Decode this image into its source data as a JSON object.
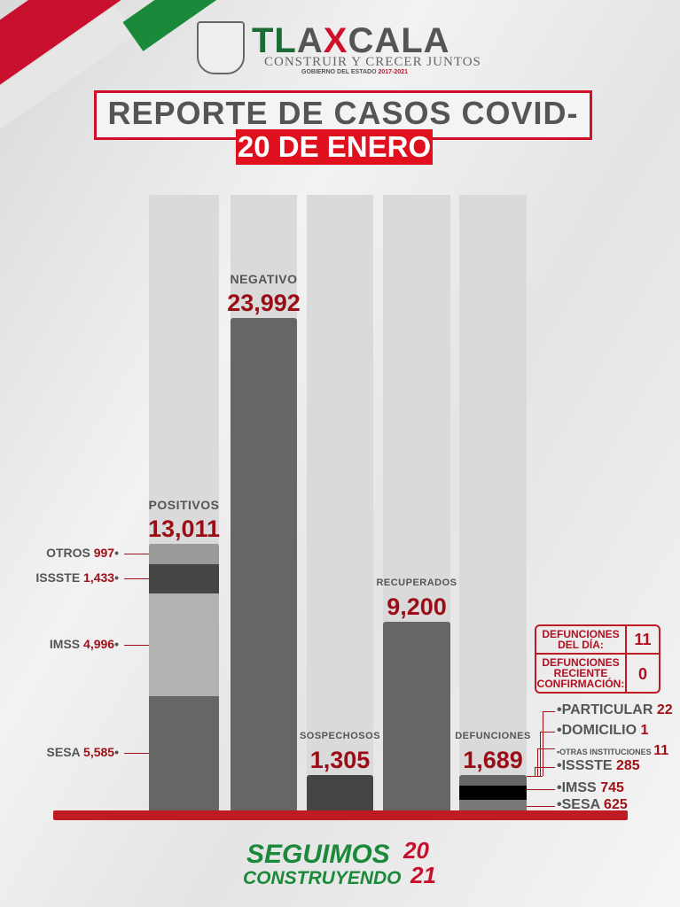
{
  "header": {
    "logo_text": "TLAXCALA",
    "slogan": "CONSTRUIR Y CRECER JUNTOS",
    "gobierno": "GOBIERNO DEL ESTADO",
    "periodo": "2017-2021",
    "title": "REPORTE DE CASOS COVID-19",
    "date": "20 DE ENERO"
  },
  "chart_data": {
    "type": "bar",
    "categories": [
      "POSITIVOS",
      "NEGATIVO",
      "SOSPECHOSOS",
      "RECUPERADOS",
      "DEFUNCIONES"
    ],
    "values": [
      13011,
      23992,
      1305,
      9200,
      1689
    ],
    "value_labels": [
      "13,011",
      "23,992",
      "1,305",
      "9,200",
      "1,689"
    ],
    "ylim": [
      0,
      30000
    ],
    "positivos_breakdown": [
      {
        "name": "OTROS",
        "value": 997,
        "label": "997",
        "color": "#9a9a9a"
      },
      {
        "name": "ISSSTE",
        "value": 1433,
        "label": "1,433",
        "color": "#454545"
      },
      {
        "name": "IMSS",
        "value": 4996,
        "label": "4,996",
        "color": "#b2b2b2"
      },
      {
        "name": "SESA",
        "value": 5585,
        "label": "5,585",
        "color": "#666666"
      }
    ],
    "defunciones_breakdown": [
      {
        "name": "PARTICULAR",
        "value": 22,
        "label": "22"
      },
      {
        "name": "DOMICILIO",
        "value": 1,
        "label": "1"
      },
      {
        "name": "OTRAS INSTITUCIONES",
        "value": 11,
        "label": "11"
      },
      {
        "name": "ISSSTE",
        "value": 285,
        "label": "285"
      },
      {
        "name": "IMSS",
        "value": 745,
        "label": "745"
      },
      {
        "name": "SESA",
        "value": 625,
        "label": "625"
      }
    ],
    "bar_colors": [
      "#666666",
      "#666666",
      "#444444",
      "#666666",
      "#666666"
    ]
  },
  "defunciones_box": {
    "dia_label1": "DEFUNCIONES",
    "dia_label2": "DEL DÍA:",
    "dia_value": "11",
    "rec_label1": "DEFUNCIONES",
    "rec_label2": "RECIENTE",
    "rec_label3": "CONFIRMACIÓN:",
    "rec_value": "0"
  },
  "footer": {
    "line1": "SEGUIMOS",
    "line2": "CONSTRUYENDO",
    "year1": "20",
    "year2": "21"
  },
  "colors": {
    "accent_red": "#c8102e",
    "accent_green": "#1a8a3a",
    "value_red": "#9b0d16"
  }
}
